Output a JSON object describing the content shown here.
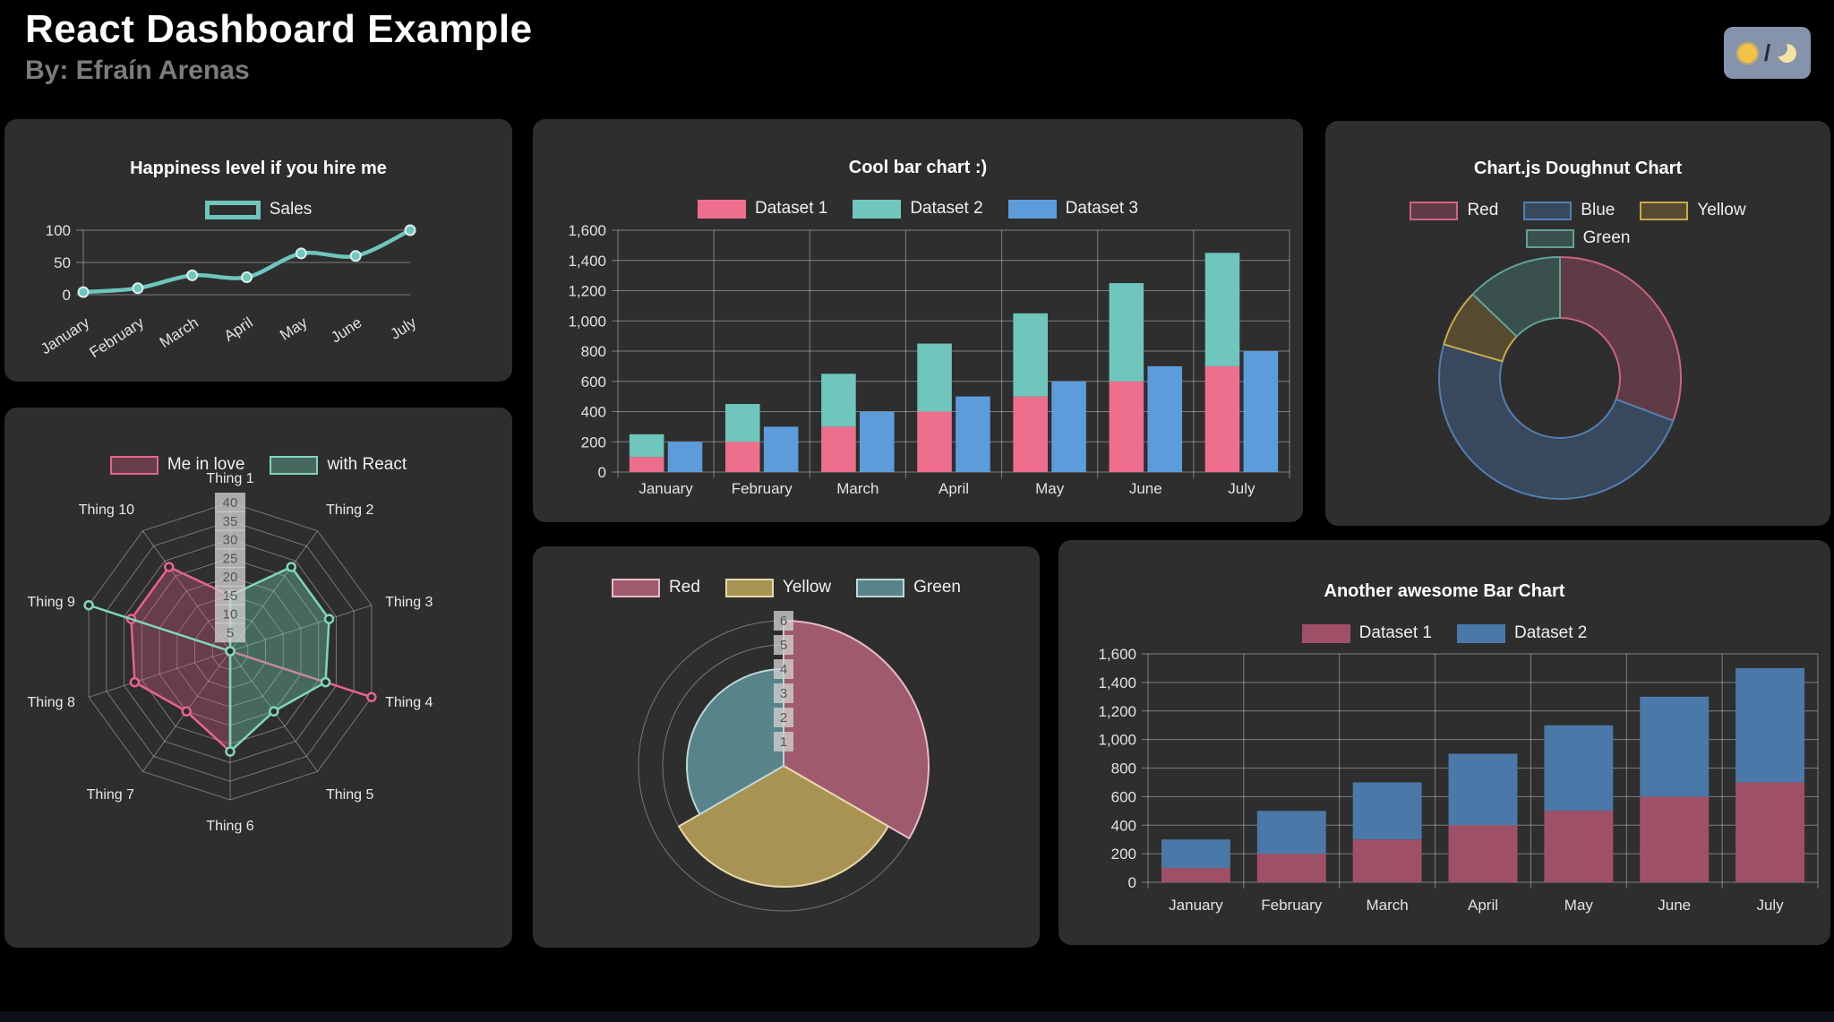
{
  "header": {
    "title": "React Dashboard Example",
    "subtitle": "By: Efraín Arenas",
    "theme_toggle": {
      "sun_icon": "sun",
      "separator": "/",
      "moon_icon": "moon"
    }
  },
  "chart_data": [
    {
      "type": "line",
      "title": "Happiness level if you hire me",
      "categories": [
        "January",
        "February",
        "March",
        "April",
        "May",
        "June",
        "July"
      ],
      "series": [
        {
          "name": "Sales",
          "values": [
            4,
            10,
            30,
            27,
            64,
            60,
            100
          ],
          "color": "#6ec6bc"
        }
      ],
      "y_ticks": [
        0,
        50,
        100
      ],
      "ylim": [
        0,
        100
      ],
      "legend_position": "top",
      "grid": true
    },
    {
      "type": "bar",
      "title": "Cool bar chart :)",
      "categories": [
        "January",
        "February",
        "March",
        "April",
        "May",
        "June",
        "July"
      ],
      "series": [
        {
          "name": "Dataset 1",
          "values": [
            100,
            200,
            300,
            400,
            500,
            600,
            700
          ],
          "color": "#ee6e8d",
          "stack": "a"
        },
        {
          "name": "Dataset 2",
          "values": [
            150,
            250,
            350,
            450,
            550,
            650,
            750
          ],
          "color": "#6ec6bc",
          "stack": "a"
        },
        {
          "name": "Dataset 3",
          "values": [
            200,
            300,
            400,
            500,
            600,
            700,
            800
          ],
          "color": "#5d9cdb",
          "stack": "b"
        }
      ],
      "y_ticks": [
        0,
        200,
        400,
        600,
        800,
        1000,
        1200,
        1400,
        1600
      ],
      "ylim": [
        0,
        1600
      ],
      "legend_position": "top",
      "grid": true
    },
    {
      "type": "doughnut",
      "title": "Chart.js Doughnut Chart",
      "labels": [
        "Red",
        "Blue",
        "Yellow",
        "Green"
      ],
      "values": [
        12,
        19,
        3,
        5
      ],
      "fill_colors": [
        "#5f3b46",
        "#38485d",
        "#564a30",
        "#3a504c"
      ],
      "border_colors": [
        "#cc6480",
        "#527fb0",
        "#c9a94e",
        "#5fa396"
      ],
      "legend_position": "top"
    },
    {
      "type": "radar",
      "categories": [
        "Thing 1",
        "Thing 2",
        "Thing 3",
        "Thing 4",
        "Thing 5",
        "Thing 6",
        "Thing 7",
        "Thing 8",
        "Thing 9",
        "Thing 10"
      ],
      "series": [
        {
          "name": "Me in love",
          "values": [
            15,
            0,
            0,
            40,
            0,
            27,
            20,
            27,
            28,
            28
          ],
          "color": "#e8638c",
          "fill": "rgba(222,93,131,0.32)"
        },
        {
          "name": "with React",
          "values": [
            15,
            28,
            28,
            27,
            20,
            27,
            0,
            0,
            40,
            0
          ],
          "color": "#7fd6bd",
          "fill": "rgba(113,207,183,0.36)"
        }
      ],
      "ticks": [
        5,
        10,
        15,
        20,
        25,
        30,
        35,
        40
      ],
      "max": 40,
      "legend_position": "top"
    },
    {
      "type": "polar_area",
      "labels": [
        "Red",
        "Yellow",
        "Green"
      ],
      "values": [
        6,
        5,
        4
      ],
      "fill_colors": [
        "#a05a6e",
        "#a99353",
        "#58838a"
      ],
      "border_colors": [
        "#e7bcc7",
        "#e6d9ad",
        "#bcd5d7"
      ],
      "ticks": [
        1,
        2,
        3,
        4,
        5,
        6
      ],
      "max": 6,
      "legend_position": "top"
    },
    {
      "type": "bar",
      "title": "Another awesome Bar Chart",
      "categories": [
        "January",
        "February",
        "March",
        "April",
        "May",
        "June",
        "July"
      ],
      "series": [
        {
          "name": "Dataset 1",
          "values": [
            100,
            200,
            300,
            400,
            500,
            600,
            700
          ],
          "color": "#a05066",
          "stack": "a"
        },
        {
          "name": "Dataset 2",
          "values": [
            200,
            300,
            400,
            500,
            600,
            700,
            800
          ],
          "color": "#4a78a8",
          "stack": "a"
        }
      ],
      "y_ticks": [
        0,
        200,
        400,
        600,
        800,
        1000,
        1200,
        1400,
        1600
      ],
      "ylim": [
        0,
        1600
      ],
      "legend_position": "top",
      "grid": true
    }
  ]
}
